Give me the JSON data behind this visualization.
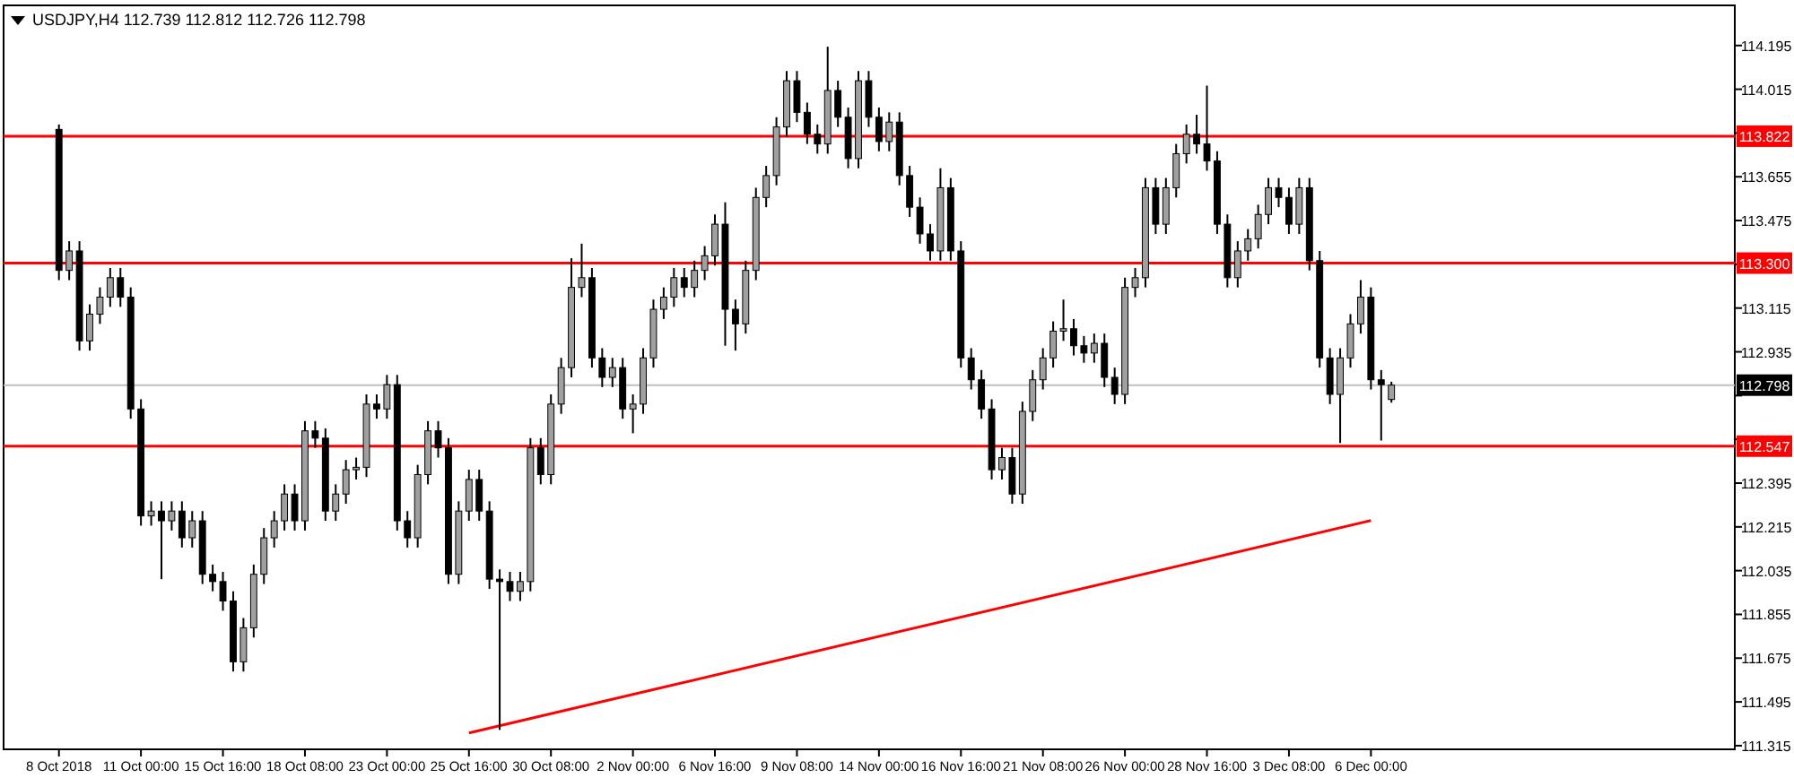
{
  "chart_data": {
    "type": "candlestick",
    "title": "USDJPY,H4  112.739 112.812 112.726 112.798",
    "color": "#000000",
    "categories": [
      "8 Oct 2018",
      null,
      null,
      null,
      null,
      null,
      null,
      null,
      "11 Oct 00:00",
      null,
      null,
      null,
      null,
      null,
      null,
      null,
      "15 Oct 16:00",
      null,
      null,
      null,
      null,
      null,
      null,
      null,
      "18 Oct 08:00",
      null,
      null,
      null,
      null,
      null,
      null,
      null,
      "23 Oct 00:00",
      null,
      null,
      null,
      null,
      null,
      null,
      null,
      "25 Oct 16:00",
      null,
      null,
      null,
      null,
      null,
      null,
      null,
      "30 Oct 08:00",
      null,
      null,
      null,
      null,
      null,
      null,
      null,
      "2 Nov 00:00",
      null,
      null,
      null,
      null,
      null,
      null,
      null,
      "6 Nov 16:00",
      null,
      null,
      null,
      null,
      null,
      null,
      null,
      "9 Nov 08:00",
      null,
      null,
      null,
      null,
      null,
      null,
      null,
      "14 Nov 00:00",
      null,
      null,
      null,
      null,
      null,
      null,
      null,
      "16 Nov 16:00",
      null,
      null,
      null,
      null,
      null,
      null,
      null,
      "21 Nov 08:00",
      null,
      null,
      null,
      null,
      null,
      null,
      null,
      "26 Nov 00:00",
      null,
      null,
      null,
      null,
      null,
      null,
      null,
      "28 Nov 16:00",
      null,
      null,
      null,
      null,
      null,
      null,
      null,
      "3 Dec 08:00",
      null,
      null,
      null,
      null,
      null,
      null,
      null,
      "6 Dec 00:00",
      null,
      null,
      null,
      null,
      null,
      null,
      null,
      null,
      null,
      null,
      null,
      null,
      null,
      null,
      null,
      null,
      null,
      null,
      null,
      null,
      null,
      null,
      null,
      null,
      null,
      null,
      null,
      null,
      null,
      null,
      null,
      null,
      null,
      null,
      null
    ],
    "ohlc": [
      [
        113.85,
        113.87,
        113.23,
        113.27
      ],
      [
        113.27,
        113.39,
        113.23,
        113.35
      ],
      [
        113.35,
        113.39,
        112.94,
        112.98
      ],
      [
        112.98,
        113.13,
        112.94,
        113.09
      ],
      [
        113.09,
        113.2,
        113.05,
        113.16
      ],
      [
        113.16,
        113.28,
        113.12,
        113.24
      ],
      [
        113.24,
        113.28,
        113.12,
        113.16
      ],
      [
        113.16,
        113.2,
        112.66,
        112.7
      ],
      [
        112.7,
        112.74,
        112.22,
        112.26
      ],
      [
        112.26,
        112.32,
        112.22,
        112.28
      ],
      [
        112.28,
        112.32,
        112.0,
        112.24
      ],
      [
        112.24,
        112.32,
        112.2,
        112.28
      ],
      [
        112.28,
        112.32,
        112.13,
        112.17
      ],
      [
        112.17,
        112.28,
        112.13,
        112.24
      ],
      [
        112.24,
        112.28,
        111.98,
        112.02
      ],
      [
        112.02,
        112.06,
        111.95,
        111.99
      ],
      [
        111.99,
        112.03,
        111.87,
        111.91
      ],
      [
        111.91,
        111.95,
        111.62,
        111.66
      ],
      [
        111.66,
        111.84,
        111.62,
        111.8
      ],
      [
        111.8,
        112.06,
        111.76,
        112.02
      ],
      [
        112.02,
        112.21,
        111.98,
        112.17
      ],
      [
        112.17,
        112.28,
        112.13,
        112.24
      ],
      [
        112.24,
        112.39,
        112.2,
        112.35
      ],
      [
        112.35,
        112.39,
        112.2,
        112.24
      ],
      [
        112.24,
        112.65,
        112.2,
        112.61
      ],
      [
        112.61,
        112.65,
        112.54,
        112.58
      ],
      [
        112.58,
        112.62,
        112.24,
        112.28
      ],
      [
        112.28,
        112.39,
        112.24,
        112.35
      ],
      [
        112.35,
        112.49,
        112.31,
        112.45
      ],
      [
        112.45,
        112.5,
        112.41,
        112.46
      ],
      [
        112.46,
        112.76,
        112.42,
        112.72
      ],
      [
        112.72,
        112.76,
        112.66,
        112.7
      ],
      [
        112.7,
        112.84,
        112.66,
        112.8
      ],
      [
        112.8,
        112.84,
        112.2,
        112.24
      ],
      [
        112.24,
        112.28,
        112.13,
        112.17
      ],
      [
        112.17,
        112.47,
        112.13,
        112.43
      ],
      [
        112.43,
        112.65,
        112.39,
        112.61
      ],
      [
        112.61,
        112.65,
        112.5,
        112.54
      ],
      [
        112.54,
        112.58,
        111.98,
        112.02
      ],
      [
        112.02,
        112.32,
        111.98,
        112.28
      ],
      [
        112.28,
        112.45,
        112.24,
        112.41
      ],
      [
        112.41,
        112.45,
        112.24,
        112.28
      ],
      [
        112.28,
        112.32,
        111.96,
        112.0
      ],
      [
        112.0,
        112.04,
        111.38,
        111.99
      ],
      [
        111.99,
        112.03,
        111.91,
        111.95
      ],
      [
        111.95,
        112.03,
        111.91,
        111.99
      ],
      [
        111.99,
        112.58,
        111.95,
        112.54
      ],
      [
        112.54,
        112.58,
        112.39,
        112.43
      ],
      [
        112.43,
        112.76,
        112.39,
        112.72
      ],
      [
        112.72,
        112.91,
        112.68,
        112.87
      ],
      [
        112.87,
        113.32,
        112.83,
        113.2
      ],
      [
        113.2,
        113.38,
        113.16,
        113.24
      ],
      [
        113.24,
        113.28,
        112.87,
        112.91
      ],
      [
        112.91,
        112.95,
        112.79,
        112.83
      ],
      [
        112.83,
        112.91,
        112.79,
        112.87
      ],
      [
        112.87,
        112.91,
        112.66,
        112.7
      ],
      [
        112.7,
        112.76,
        112.6,
        112.72
      ],
      [
        112.72,
        112.95,
        112.68,
        112.91
      ],
      [
        112.91,
        113.15,
        112.87,
        113.11
      ],
      [
        113.11,
        113.2,
        113.07,
        113.16
      ],
      [
        113.16,
        113.28,
        113.12,
        113.24
      ],
      [
        113.24,
        113.28,
        113.16,
        113.2
      ],
      [
        113.2,
        113.31,
        113.16,
        113.27
      ],
      [
        113.27,
        113.37,
        113.23,
        113.33
      ],
      [
        113.33,
        113.5,
        113.29,
        113.46
      ],
      [
        113.46,
        113.55,
        112.96,
        113.11
      ],
      [
        113.11,
        113.15,
        112.94,
        113.05
      ],
      [
        113.05,
        113.31,
        113.01,
        113.27
      ],
      [
        113.27,
        113.61,
        113.23,
        113.57
      ],
      [
        113.57,
        113.7,
        113.53,
        113.66
      ],
      [
        113.66,
        113.9,
        113.62,
        113.86
      ],
      [
        113.86,
        114.09,
        113.82,
        114.05
      ],
      [
        114.05,
        114.09,
        113.88,
        113.92
      ],
      [
        113.92,
        113.96,
        113.79,
        113.83
      ],
      [
        113.83,
        113.87,
        113.75,
        113.79
      ],
      [
        113.79,
        114.19,
        113.75,
        114.01
      ],
      [
        114.01,
        114.05,
        113.86,
        113.9
      ],
      [
        113.9,
        113.94,
        113.69,
        113.73
      ],
      [
        113.73,
        114.09,
        113.69,
        114.05
      ],
      [
        114.05,
        114.09,
        113.86,
        113.9
      ],
      [
        113.9,
        113.94,
        113.76,
        113.8
      ],
      [
        113.8,
        113.92,
        113.76,
        113.88
      ],
      [
        113.88,
        113.92,
        113.62,
        113.66
      ],
      [
        113.66,
        113.7,
        113.49,
        113.53
      ],
      [
        113.53,
        113.57,
        113.38,
        113.42
      ],
      [
        113.42,
        113.46,
        113.31,
        113.35
      ],
      [
        113.35,
        113.69,
        113.31,
        113.61
      ],
      [
        113.61,
        113.65,
        113.31,
        113.35
      ],
      [
        113.35,
        113.39,
        112.87,
        112.91
      ],
      [
        112.91,
        112.95,
        112.78,
        112.82
      ],
      [
        112.82,
        112.86,
        112.66,
        112.7
      ],
      [
        112.7,
        112.74,
        112.41,
        112.45
      ],
      [
        112.45,
        112.54,
        112.41,
        112.5
      ],
      [
        112.5,
        112.54,
        112.31,
        112.35
      ],
      [
        112.35,
        112.73,
        112.31,
        112.69
      ],
      [
        112.69,
        112.86,
        112.65,
        112.82
      ],
      [
        112.82,
        112.95,
        112.78,
        112.91
      ],
      [
        112.91,
        113.06,
        112.87,
        113.02
      ],
      [
        113.02,
        113.15,
        112.98,
        113.03
      ],
      [
        113.03,
        113.07,
        112.92,
        112.96
      ],
      [
        112.96,
        113.0,
        112.89,
        112.93
      ],
      [
        112.93,
        113.01,
        112.89,
        112.97
      ],
      [
        112.97,
        113.01,
        112.79,
        112.83
      ],
      [
        112.83,
        112.87,
        112.72,
        112.76
      ],
      [
        112.76,
        113.24,
        112.72,
        113.2
      ],
      [
        113.2,
        113.28,
        113.16,
        113.24
      ],
      [
        113.24,
        113.65,
        113.2,
        113.61
      ],
      [
        113.61,
        113.65,
        113.42,
        113.46
      ],
      [
        113.46,
        113.65,
        113.42,
        113.61
      ],
      [
        113.61,
        113.79,
        113.57,
        113.75
      ],
      [
        113.75,
        113.87,
        113.71,
        113.83
      ],
      [
        113.83,
        113.91,
        113.75,
        113.79
      ],
      [
        113.79,
        114.03,
        113.68,
        113.72
      ],
      [
        113.72,
        113.76,
        113.42,
        113.46
      ],
      [
        113.46,
        113.5,
        113.2,
        113.24
      ],
      [
        113.24,
        113.39,
        113.2,
        113.35
      ],
      [
        113.35,
        113.44,
        113.31,
        113.4
      ],
      [
        113.4,
        113.54,
        113.36,
        113.5
      ],
      [
        113.5,
        113.65,
        113.46,
        113.61
      ],
      [
        113.61,
        113.65,
        113.53,
        113.57
      ],
      [
        113.57,
        113.61,
        113.42,
        113.46
      ],
      [
        113.46,
        113.65,
        113.42,
        113.61
      ],
      [
        113.61,
        113.65,
        113.27,
        113.31
      ],
      [
        113.31,
        113.35,
        112.87,
        112.91
      ],
      [
        112.91,
        112.95,
        112.72,
        112.76
      ],
      [
        112.76,
        112.95,
        112.56,
        112.91
      ],
      [
        112.91,
        113.09,
        112.87,
        113.05
      ],
      [
        113.05,
        113.23,
        113.01,
        113.16
      ],
      [
        113.16,
        113.2,
        112.78,
        112.82
      ],
      [
        112.82,
        112.86,
        112.57,
        112.8
      ],
      [
        112.739,
        112.812,
        112.726,
        112.798
      ],
      null,
      null,
      null,
      null,
      null,
      null,
      null,
      null,
      null,
      null,
      null,
      null,
      null,
      null,
      null,
      null,
      null,
      null,
      null,
      null,
      null,
      null,
      null,
      null,
      null,
      null,
      null,
      null,
      null,
      null,
      null,
      null,
      null
    ],
    "series": [
      {
        "type": "line",
        "color": "#ff0000",
        "x": [
          "25 Oct 16:00",
          "6 Dec 00:00"
        ],
        "values": [
          111.367,
          112.241
        ]
      }
    ],
    "ylim": [
      111.3,
      114.36
    ],
    "yticks": [
      111.315,
      111.495,
      111.675,
      111.855,
      112.035,
      112.215,
      112.395,
      {
        "value": 112.575,
        "label": null
      },
      {
        "value": 112.755,
        "label": null
      },
      112.935,
      113.115,
      {
        "value": 113.295,
        "label": null
      },
      113.475,
      113.655,
      {
        "value": 113.835,
        "label": null
      },
      114.015,
      114.195
    ],
    "ref_lines": [
      {
        "axis": "y",
        "value": 113.822,
        "label": "113.822",
        "color": "#ff0000"
      },
      {
        "axis": "y",
        "value": 113.3,
        "label": "113.300",
        "color": "#ff0000"
      },
      {
        "axis": "y",
        "value": 112.547,
        "label": "112.547",
        "color": "#ff0000"
      },
      {
        "axis": "y",
        "value": 112.798,
        "label": "112.798",
        "color": "#c0c0c0"
      }
    ]
  }
}
